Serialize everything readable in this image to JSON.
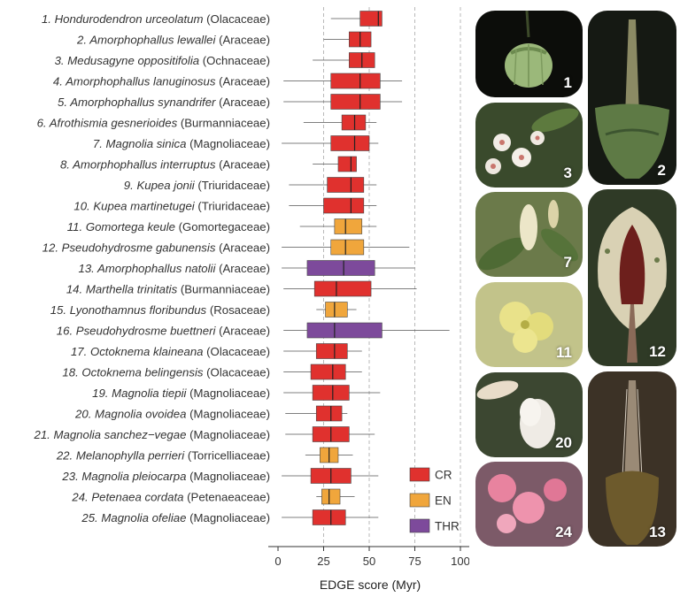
{
  "chart_data": {
    "type": "boxplot",
    "xlabel": "EDGE score (Myr)",
    "xlim": [
      -5,
      103
    ],
    "xticks": [
      0,
      25,
      50,
      75,
      100
    ],
    "grid": "vertical dashed at 25, 50, 75, 100",
    "legend": {
      "placement": "bottom-right",
      "entries": [
        {
          "label": "CR",
          "color": "#e0312e"
        },
        {
          "label": "EN",
          "color": "#f0a63c"
        },
        {
          "label": "THR",
          "color": "#7d4a9b"
        }
      ]
    },
    "species": [
      {
        "rank": "1.",
        "name": "Hondurodendron urceolatum",
        "family": "(Olacaceae)",
        "status": "CR",
        "min": 29,
        "q1": 45,
        "median": 55,
        "q3": 57,
        "max": 57
      },
      {
        "rank": "2.",
        "name": "Amorphophallus lewallei",
        "family": "(Araceae)",
        "status": "CR",
        "min": 25,
        "q1": 39,
        "median": 45,
        "q3": 51,
        "max": 51
      },
      {
        "rank": "3.",
        "name": "Medusagyne oppositifolia",
        "family": "(Ochnaceae)",
        "status": "CR",
        "min": 19,
        "q1": 39,
        "median": 46,
        "q3": 53,
        "max": 53
      },
      {
        "rank": "4.",
        "name": "Amorphophallus lanuginosus",
        "family": "(Araceae)",
        "status": "CR",
        "min": 3,
        "q1": 29,
        "median": 45,
        "q3": 56,
        "max": 68
      },
      {
        "rank": "5.",
        "name": "Amorphophallus synandrifer",
        "family": "(Araceae)",
        "status": "CR",
        "min": 3,
        "q1": 29,
        "median": 45,
        "q3": 56,
        "max": 68
      },
      {
        "rank": "6.",
        "name": "Afrothismia gesnerioides",
        "family": "(Burmanniaceae)",
        "status": "CR",
        "min": 14,
        "q1": 35,
        "median": 42,
        "q3": 48,
        "max": 54
      },
      {
        "rank": "7.",
        "name": "Magnolia sinica",
        "family": "(Magnoliaceae)",
        "status": "CR",
        "min": 2,
        "q1": 29,
        "median": 42,
        "q3": 50,
        "max": 55
      },
      {
        "rank": "8.",
        "name": "Amorphophallus interruptus",
        "family": "(Araceae)",
        "status": "CR",
        "min": 19,
        "q1": 33,
        "median": 40,
        "q3": 43,
        "max": 43
      },
      {
        "rank": "9.",
        "name": "Kupea jonii",
        "family": "(Triuridaceae)",
        "status": "CR",
        "min": 6,
        "q1": 27,
        "median": 40,
        "q3": 47,
        "max": 54
      },
      {
        "rank": "10.",
        "name": "Kupea martinetugei",
        "family": "(Triuridaceae)",
        "status": "CR",
        "min": 6,
        "q1": 25,
        "median": 40,
        "q3": 47,
        "max": 54
      },
      {
        "rank": "11.",
        "name": "Gomortega keule",
        "family": "(Gomortegaceae)",
        "status": "EN",
        "min": 12,
        "q1": 31,
        "median": 37,
        "q3": 46,
        "max": 54
      },
      {
        "rank": "12.",
        "name": "Pseudohydrosme gabunensis",
        "family": "(Araceae)",
        "status": "EN",
        "min": 2,
        "q1": 29,
        "median": 37,
        "q3": 47,
        "max": 72
      },
      {
        "rank": "13.",
        "name": "Amorphophallus natolii",
        "family": "(Araceae)",
        "status": "THR",
        "min": 2,
        "q1": 16,
        "median": 36,
        "q3": 53,
        "max": 75
      },
      {
        "rank": "14.",
        "name": "Marthella trinitatis",
        "family": "(Burmanniaceae)",
        "status": "CR",
        "min": 3,
        "q1": 20,
        "median": 32,
        "q3": 51,
        "max": 76
      },
      {
        "rank": "15.",
        "name": "Lyonothamnus floribundus",
        "family": "(Rosaceae)",
        "status": "EN",
        "min": 21,
        "q1": 26,
        "median": 31,
        "q3": 38,
        "max": 43
      },
      {
        "rank": "16.",
        "name": "Pseudohydrosme buettneri",
        "family": "(Araceae)",
        "status": "THR",
        "min": 3,
        "q1": 16,
        "median": 31,
        "q3": 57,
        "max": 94
      },
      {
        "rank": "17.",
        "name": "Octoknema klaineana",
        "family": "(Olacaceae)",
        "status": "CR",
        "min": 3,
        "q1": 21,
        "median": 31,
        "q3": 38,
        "max": 46
      },
      {
        "rank": "18.",
        "name": "Octoknema belingensis",
        "family": "(Olacaceae)",
        "status": "CR",
        "min": 3,
        "q1": 18,
        "median": 30,
        "q3": 37,
        "max": 46
      },
      {
        "rank": "19.",
        "name": "Magnolia tiepii",
        "family": "(Magnoliaceae)",
        "status": "CR",
        "min": 3,
        "q1": 19,
        "median": 30,
        "q3": 39,
        "max": 56
      },
      {
        "rank": "20.",
        "name": "Magnolia ovoidea",
        "family": "(Magnoliaceae)",
        "status": "CR",
        "min": 4,
        "q1": 21,
        "median": 29,
        "q3": 35,
        "max": 38
      },
      {
        "rank": "21.",
        "name": "Magnolia sanchez−vegae",
        "family": "(Magnoliaceae)",
        "status": "CR",
        "min": 4,
        "q1": 19,
        "median": 29,
        "q3": 39,
        "max": 53
      },
      {
        "rank": "22.",
        "name": "Melanophylla perrieri",
        "family": "(Torricelliaceae)",
        "status": "EN",
        "min": 15,
        "q1": 23,
        "median": 28,
        "q3": 33,
        "max": 41
      },
      {
        "rank": "23.",
        "name": "Magnolia pleiocarpa",
        "family": "(Magnoliaceae)",
        "status": "CR",
        "min": 2,
        "q1": 18,
        "median": 29,
        "q3": 40,
        "max": 55
      },
      {
        "rank": "24.",
        "name": "Petenaea cordata",
        "family": "(Petenaeaceae)",
        "status": "EN",
        "min": 21,
        "q1": 24,
        "median": 28,
        "q3": 34,
        "max": 42
      },
      {
        "rank": "25.",
        "name": "Magnolia ofeliae",
        "family": "(Magnoliaceae)",
        "status": "CR",
        "min": 2,
        "q1": 19,
        "median": 29,
        "q3": 37,
        "max": 55
      }
    ]
  },
  "photos": [
    {
      "label": "1",
      "subject": "green urn-shaped fruit"
    },
    {
      "label": "2",
      "subject": "tall green spathe with yellow spadix"
    },
    {
      "label": "3",
      "subject": "white flowers with pink centres"
    },
    {
      "label": "7",
      "subject": "cream magnolia bud among leaves"
    },
    {
      "label": "12",
      "subject": "spotted pale spathe with dark red interior"
    },
    {
      "label": "11",
      "subject": "yellow-green flower cluster"
    },
    {
      "label": "20",
      "subject": "white magnolia flower"
    },
    {
      "label": "13",
      "subject": "tall hairy inflorescence spike"
    },
    {
      "label": "24",
      "subject": "pink fluffy flowers"
    }
  ]
}
